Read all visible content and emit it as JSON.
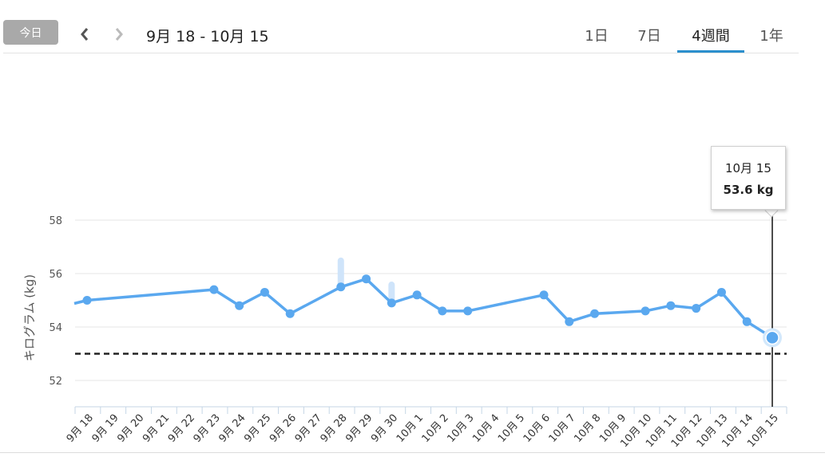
{
  "toolbar": {
    "today_label": "今日",
    "prev_icon": "chevron-left-icon",
    "next_icon": "chevron-right-icon",
    "range_label": "9月 18 - 10月 15"
  },
  "tabs": [
    {
      "label": "1日",
      "selected": false
    },
    {
      "label": "7日",
      "selected": false
    },
    {
      "label": "4週間",
      "selected": true
    },
    {
      "label": "1年",
      "selected": false
    }
  ],
  "colors": {
    "line": "#5aa8ef",
    "range_bar": "#cfe4fa",
    "goal_line": "#222222",
    "accent": "#2b8fcd",
    "today_button": "#a9a9a9"
  },
  "tooltip": {
    "date": "10月 15",
    "value": "53.6 kg"
  },
  "chart_data": {
    "type": "line",
    "title": "",
    "xlabel": "",
    "ylabel": "キログラム (kg)",
    "ylim": [
      51,
      58.5
    ],
    "yticks": [
      52,
      54,
      56,
      58
    ],
    "grid": true,
    "goal_value": 53,
    "categories": [
      "9月 18",
      "9月 19",
      "9月 20",
      "9月 21",
      "9月 22",
      "9月 23",
      "9月 24",
      "9月 25",
      "9月 26",
      "9月 27",
      "9月 28",
      "9月 29",
      "9月 30",
      "10月 1",
      "10月 2",
      "10月 3",
      "10月 4",
      "10月 5",
      "10月 6",
      "10月 7",
      "10月 8",
      "10月 9",
      "10月 10",
      "10月 11",
      "10月 12",
      "10月 13",
      "10月 14",
      "10月 15"
    ],
    "series": [
      {
        "values": [
          55.0,
          null,
          null,
          null,
          null,
          55.4,
          54.8,
          55.3,
          54.5,
          null,
          55.5,
          55.8,
          54.9,
          55.2,
          54.6,
          54.6,
          null,
          null,
          55.2,
          54.2,
          54.5,
          null,
          54.6,
          54.8,
          54.7,
          55.3,
          54.2,
          53.6
        ]
      }
    ],
    "ranges": [
      {
        "category": "9月 28",
        "low": 55.5,
        "high": 56.6
      },
      {
        "category": "9月 30",
        "low": 54.9,
        "high": 55.7
      }
    ],
    "selected_category": "10月 15"
  }
}
